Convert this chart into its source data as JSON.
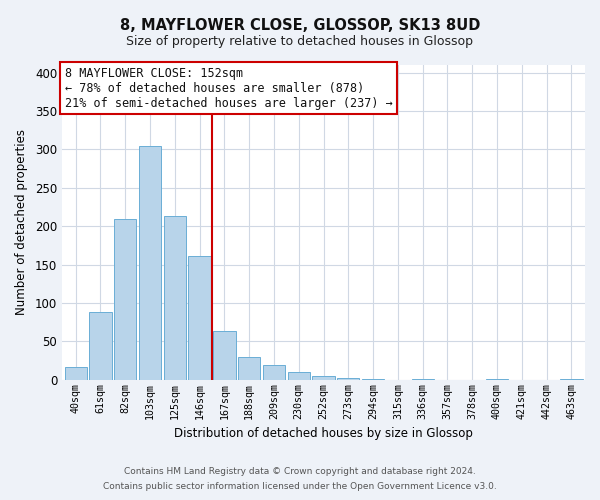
{
  "title": "8, MAYFLOWER CLOSE, GLOSSOP, SK13 8UD",
  "subtitle": "Size of property relative to detached houses in Glossop",
  "xlabel": "Distribution of detached houses by size in Glossop",
  "ylabel": "Number of detached properties",
  "bin_labels": [
    "40sqm",
    "61sqm",
    "82sqm",
    "103sqm",
    "125sqm",
    "146sqm",
    "167sqm",
    "188sqm",
    "209sqm",
    "230sqm",
    "252sqm",
    "273sqm",
    "294sqm",
    "315sqm",
    "336sqm",
    "357sqm",
    "378sqm",
    "400sqm",
    "421sqm",
    "442sqm",
    "463sqm"
  ],
  "bar_heights": [
    17,
    89,
    210,
    305,
    213,
    161,
    64,
    30,
    20,
    10,
    5,
    2,
    1,
    0,
    1,
    0,
    0,
    1,
    0,
    0,
    1
  ],
  "bar_color": "#b8d4ea",
  "bar_edge_color": "#6aaed6",
  "vline_x": 5.5,
  "vline_color": "#cc0000",
  "ylim": [
    0,
    410
  ],
  "yticks": [
    0,
    50,
    100,
    150,
    200,
    250,
    300,
    350,
    400
  ],
  "annotation_title": "8 MAYFLOWER CLOSE: 152sqm",
  "annotation_line1": "← 78% of detached houses are smaller (878)",
  "annotation_line2": "21% of semi-detached houses are larger (237) →",
  "annotation_box_color": "#ffffff",
  "annotation_box_edge": "#cc0000",
  "footer1": "Contains HM Land Registry data © Crown copyright and database right 2024.",
  "footer2": "Contains public sector information licensed under the Open Government Licence v3.0.",
  "bg_color": "#eef2f8",
  "plot_bg_color": "#ffffff",
  "grid_color": "#d0d8e4"
}
